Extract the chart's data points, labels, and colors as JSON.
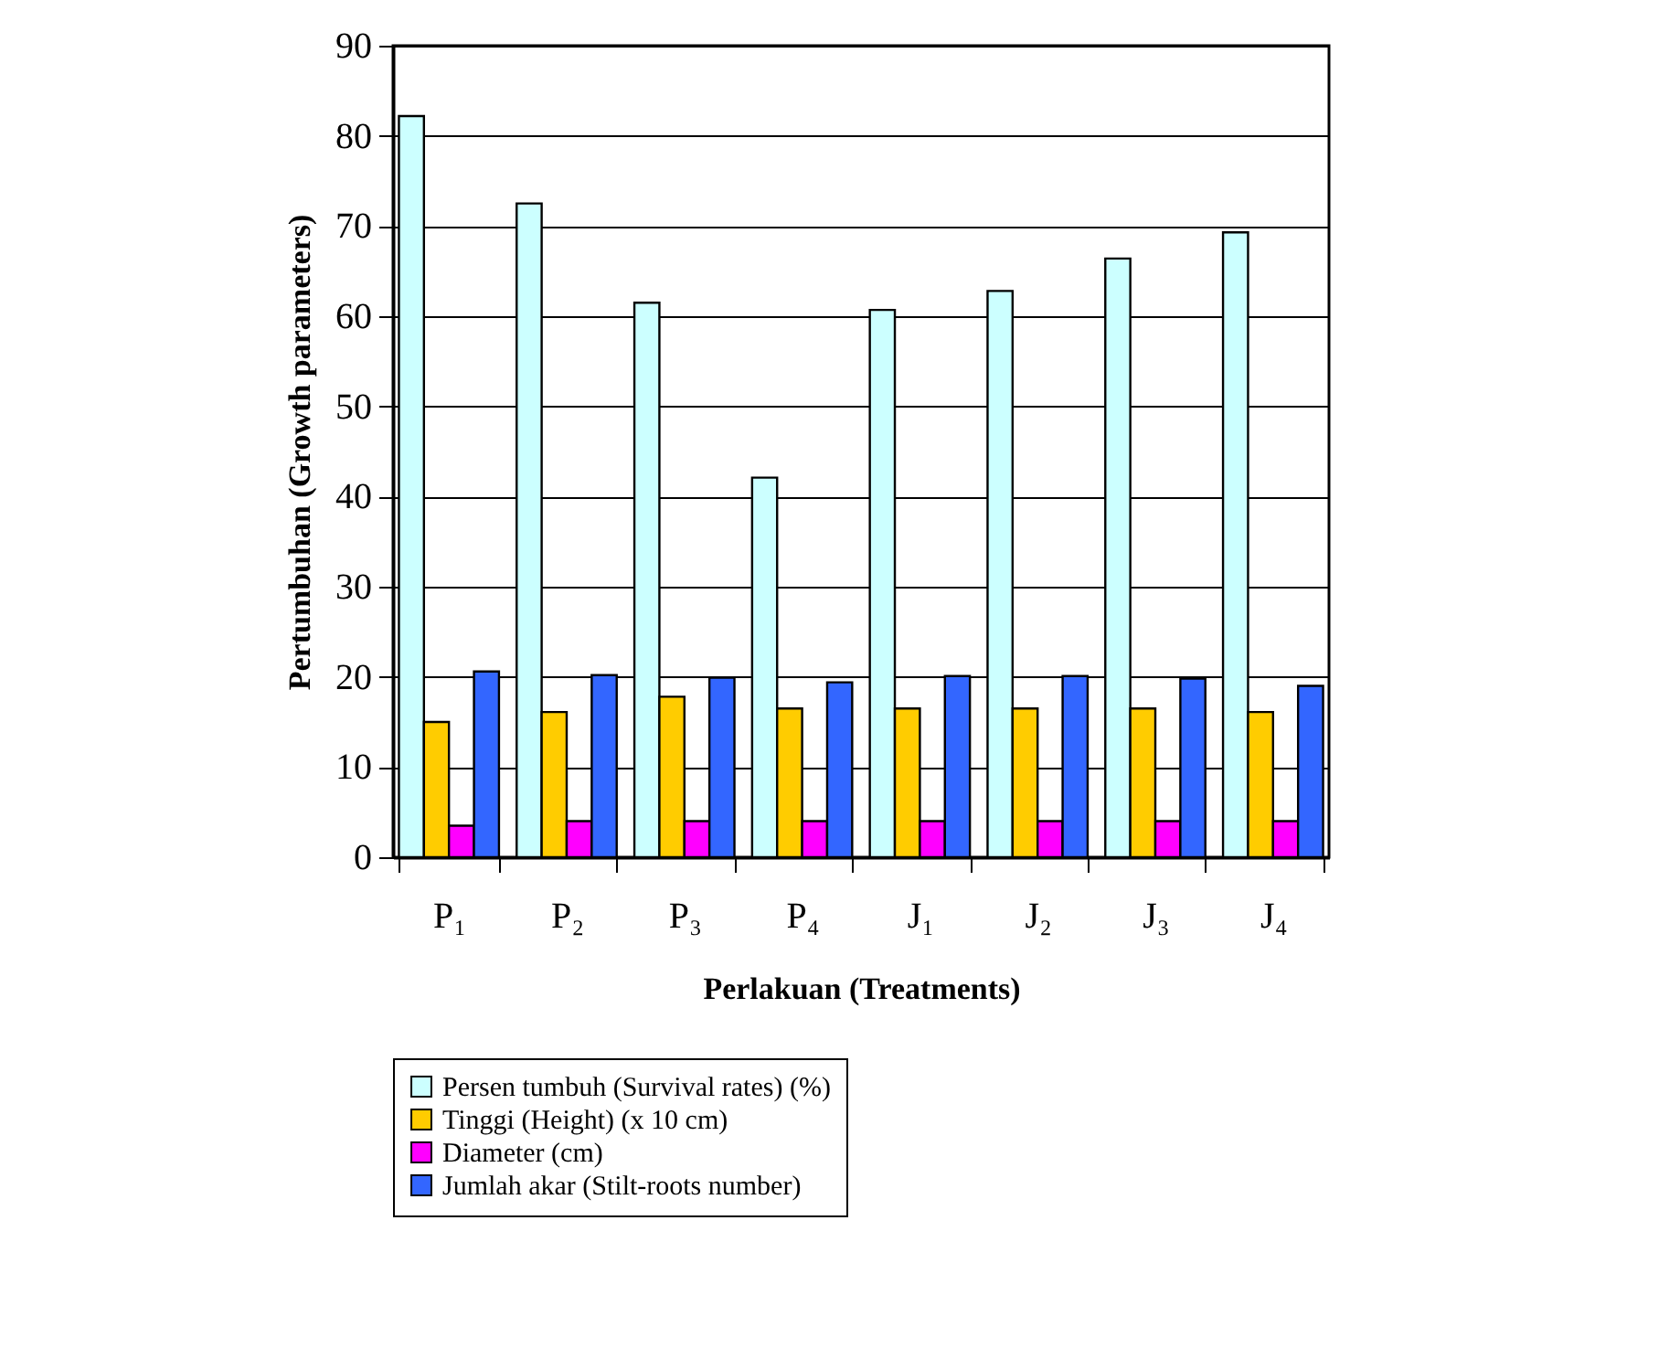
{
  "chart_data": {
    "type": "bar",
    "categories": [
      "P₁",
      "P₂",
      "P₃",
      "P₄",
      "J₁",
      "J₂",
      "J₃",
      "J₄"
    ],
    "series": [
      {
        "name": "Persen tumbuh (Survival rates) (%)",
        "color": "#ccffff",
        "values": [
          82.2,
          72.5,
          61.5,
          42.1,
          60.7,
          62.8,
          66.4,
          69.3
        ]
      },
      {
        "name": "Tinggi (Height) (x 10 cm)",
        "color": "#ffcc00",
        "values": [
          15.0,
          16.1,
          17.8,
          16.5,
          16.5,
          16.5,
          16.5,
          16.1
        ]
      },
      {
        "name": "Diameter (cm)",
        "color": "#ff00ff",
        "values": [
          3.5,
          4.0,
          4.0,
          4.0,
          4.0,
          4.0,
          4.0,
          4.0
        ]
      },
      {
        "name": "Jumlah akar (Stilt-roots number)",
        "color": "#3366ff",
        "values": [
          20.6,
          20.2,
          19.9,
          19.4,
          20.1,
          20.1,
          19.8,
          19.0
        ]
      }
    ],
    "xlabel": "Perlakuan (Treatments)",
    "ylabel": "Pertumbuhan (Growth parameters)",
    "ylim": [
      0,
      90
    ],
    "yticks": [
      0,
      10,
      20,
      30,
      40,
      50,
      60,
      70,
      80,
      90
    ],
    "grid": "y",
    "legend": "bottom"
  }
}
